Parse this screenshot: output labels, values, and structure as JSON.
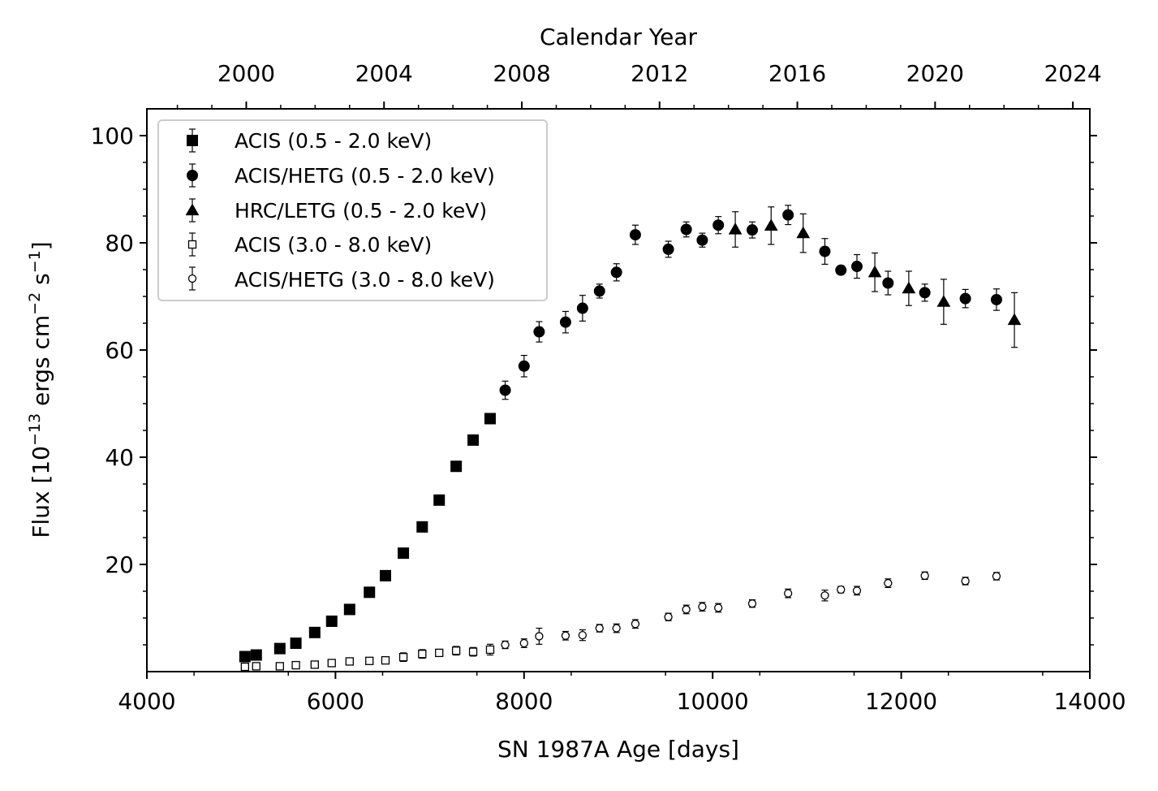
{
  "chart_data": {
    "type": "scatter",
    "title": "",
    "xlabel": "SN 1987A Age [days]",
    "ylabel": {
      "prefix": "Flux [10",
      "exp1": "−13",
      "mid": " ergs cm",
      "exp2": "−2",
      "mid2": " s",
      "exp3": "−1",
      "suffix": "]"
    },
    "top_xlabel": "Calendar Year",
    "xlim": [
      4000,
      14000
    ],
    "ylim": [
      0,
      105
    ],
    "x_ticks": [
      4000,
      6000,
      8000,
      10000,
      12000,
      14000
    ],
    "x_tick_labels": [
      "4000",
      "6000",
      "8000",
      "10000",
      "12000",
      "14000"
    ],
    "y_ticks": [
      20,
      40,
      60,
      80,
      100
    ],
    "y_tick_labels": [
      "20",
      "40",
      "60",
      "80",
      "100"
    ],
    "top_ticks_days": [
      5054,
      6515,
      7976,
      9437,
      10898,
      12359,
      13820
    ],
    "top_tick_labels": [
      "2000",
      "2004",
      "2008",
      "2012",
      "2016",
      "2020",
      "2024"
    ],
    "legend": {
      "position": "upper-left"
    },
    "series": [
      {
        "name": "ACIS (0.5 - 2.0 keV)",
        "marker": "square-filled",
        "x": [
          5040,
          5160,
          5410,
          5580,
          5780,
          5960,
          6150,
          6360,
          6530,
          6720,
          6920,
          7100,
          7280,
          7460,
          7640
        ],
        "y": [
          2.8,
          3.1,
          4.3,
          5.3,
          7.3,
          9.4,
          11.6,
          14.8,
          17.9,
          22.1,
          27.0,
          32.0,
          38.3,
          43.2,
          47.2
        ],
        "err": [
          0.3,
          0.3,
          0.3,
          0.3,
          0.3,
          0.3,
          0.3,
          0.3,
          0.3,
          0.3,
          0.3,
          0.3,
          0.3,
          0.3,
          0.3
        ]
      },
      {
        "name": "ACIS/HETG (0.5 - 2.0 keV)",
        "marker": "circle-filled",
        "x": [
          7800,
          8000,
          8160,
          8440,
          8620,
          8800,
          8980,
          9180,
          9530,
          9720,
          9890,
          10060,
          10420,
          10800,
          11190,
          11360,
          11530,
          11860,
          12250,
          12680,
          13010
        ],
        "y": [
          52.5,
          57.0,
          63.4,
          65.2,
          67.8,
          71.0,
          74.5,
          81.5,
          78.8,
          82.5,
          80.5,
          83.3,
          82.4,
          85.2,
          78.4,
          74.9,
          75.6,
          72.5,
          70.7,
          69.6,
          69.4
        ],
        "err": [
          1.7,
          2.0,
          1.9,
          2.0,
          2.4,
          1.3,
          1.6,
          1.8,
          1.5,
          1.4,
          1.3,
          1.6,
          1.5,
          1.8,
          2.4,
          0.8,
          2.2,
          2.2,
          1.6,
          1.7,
          2.0
        ]
      },
      {
        "name": "HRC/LETG (0.5 - 2.0 keV)",
        "marker": "triangle-filled",
        "x": [
          10240,
          10620,
          10960,
          11720,
          12080,
          12450,
          13200
        ],
        "y": [
          82.5,
          83.2,
          81.8,
          74.5,
          71.5,
          69.0,
          65.6
        ],
        "err": [
          3.3,
          3.5,
          3.6,
          3.6,
          3.2,
          4.2,
          5.1
        ]
      },
      {
        "name": "ACIS (3.0 - 8.0 keV)",
        "marker": "square-open",
        "x": [
          5040,
          5160,
          5410,
          5580,
          5780,
          5960,
          6150,
          6360,
          6530,
          6720,
          6920,
          7100,
          7280,
          7460,
          7640
        ],
        "y": [
          0.9,
          1.0,
          1.0,
          1.2,
          1.3,
          1.6,
          1.9,
          2.0,
          2.1,
          2.7,
          3.3,
          3.5,
          3.9,
          3.7,
          4.1
        ],
        "err": [
          0.5,
          0.5,
          0.5,
          0.5,
          0.6,
          0.6,
          0.6,
          0.6,
          0.6,
          0.8,
          0.8,
          0.6,
          0.8,
          0.8,
          1.0
        ]
      },
      {
        "name": "ACIS/HETG (3.0 - 8.0 keV)",
        "marker": "circle-open",
        "x": [
          7800,
          8000,
          8160,
          8440,
          8620,
          8800,
          8980,
          9180,
          9530,
          9720,
          9890,
          10060,
          10420,
          10800,
          11190,
          11360,
          11530,
          11860,
          12250,
          12680,
          13010
        ],
        "y": [
          5.0,
          5.3,
          6.6,
          6.7,
          6.8,
          8.1,
          8.1,
          8.9,
          10.2,
          11.6,
          12.1,
          11.9,
          12.7,
          14.6,
          14.2,
          15.3,
          15.1,
          16.5,
          17.9,
          16.9,
          17.8
        ],
        "err": [
          0.7,
          0.8,
          1.5,
          0.8,
          1.0,
          0.7,
          0.8,
          0.8,
          0.7,
          0.8,
          0.8,
          0.8,
          0.7,
          0.8,
          1.0,
          0.6,
          0.8,
          0.8,
          0.7,
          0.7,
          0.7
        ]
      }
    ]
  }
}
